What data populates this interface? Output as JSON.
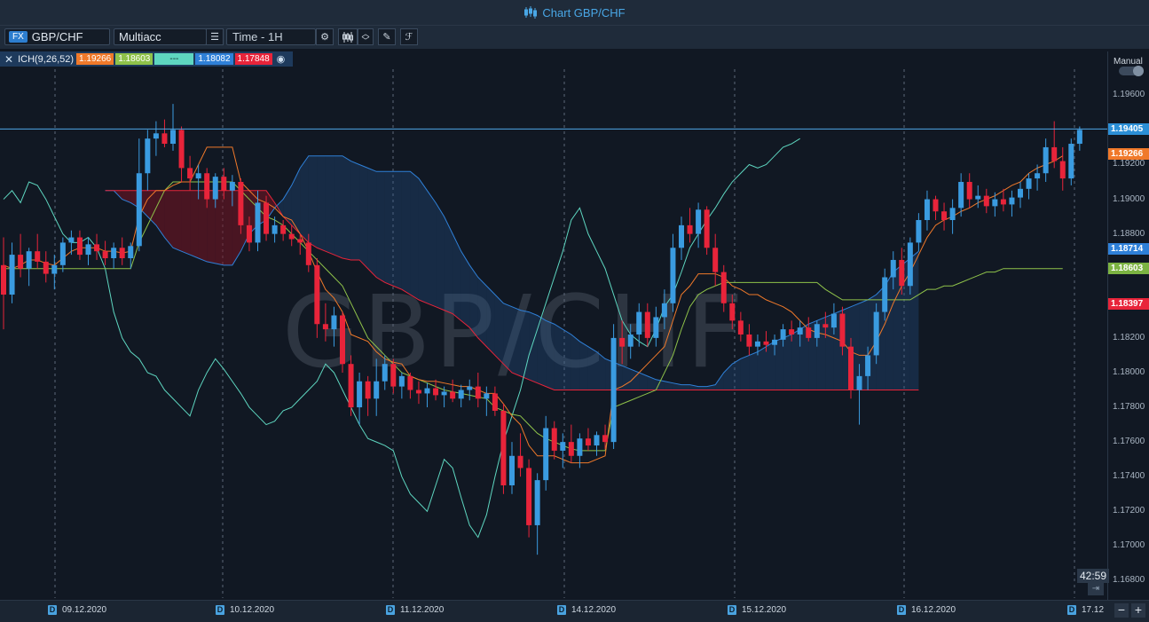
{
  "title": "Chart GBP/CHF",
  "toolbar": {
    "asset_type": "FX",
    "symbol": "GBP/CHF",
    "account": "Multiacc",
    "timeframe": "Time - 1H"
  },
  "indicator": {
    "name": "ICH(9,26,52)",
    "values": [
      {
        "text": "1.19266",
        "color": "#f0792a"
      },
      {
        "text": "1.18603",
        "color": "#8fc24a"
      },
      {
        "text": "---",
        "color": "#5ed6c0"
      },
      {
        "text": "1.18082",
        "color": "#2f80d8"
      },
      {
        "text": "1.17848",
        "color": "#e8243a"
      }
    ]
  },
  "watermark": "GBP/CHF",
  "price_axis": {
    "mode": "Manual",
    "labels": [
      "1.19600",
      "1.19400",
      "1.19200",
      "1.19000",
      "1.18800",
      "1.18600",
      "1.18400",
      "1.18200",
      "1.18000",
      "1.17800",
      "1.17600",
      "1.17400",
      "1.17200",
      "1.17000",
      "1.16800"
    ],
    "tags": [
      {
        "text": "1.19405",
        "color": "#2c8fd6",
        "price": 1.19405
      },
      {
        "text": "1.19266",
        "color": "#f0792a",
        "price": 1.19266
      },
      {
        "text": "1.18714",
        "color": "#2f80d8",
        "price": 1.18714
      },
      {
        "text": "1.18603",
        "color": "#7cb342",
        "price": 1.18603
      },
      {
        "text": "1.18397",
        "color": "#e8243a",
        "price": 1.18397
      }
    ]
  },
  "time_axis": {
    "badge": "D",
    "dates": [
      "09.12.2020",
      "10.12.2020",
      "11.12.2020",
      "14.12.2020",
      "15.12.2020",
      "16.12.2020",
      "17.12"
    ]
  },
  "timer": "42:59",
  "chart_data": {
    "type": "candlestick",
    "ylim": [
      1.167,
      1.1975
    ],
    "current_price": 1.19405,
    "candles": [
      [
        1.1862,
        1.1878,
        1.1825,
        1.1845
      ],
      [
        1.1845,
        1.1875,
        1.184,
        1.1868
      ],
      [
        1.1868,
        1.188,
        1.1855,
        1.186
      ],
      [
        1.186,
        1.1872,
        1.185,
        1.187
      ],
      [
        1.187,
        1.188,
        1.186,
        1.1864
      ],
      [
        1.1864,
        1.187,
        1.1852,
        1.1857
      ],
      [
        1.1857,
        1.1868,
        1.1848,
        1.1862
      ],
      [
        1.1862,
        1.1878,
        1.1858,
        1.1875
      ],
      [
        1.1875,
        1.1882,
        1.1868,
        1.1878
      ],
      [
        1.1878,
        1.1882,
        1.1865,
        1.1868
      ],
      [
        1.1868,
        1.1878,
        1.1862,
        1.1874
      ],
      [
        1.1874,
        1.188,
        1.1865,
        1.187
      ],
      [
        1.187,
        1.1876,
        1.1862,
        1.1866
      ],
      [
        1.1866,
        1.1875,
        1.186,
        1.1872
      ],
      [
        1.1872,
        1.1878,
        1.1862,
        1.1866
      ],
      [
        1.1866,
        1.1875,
        1.186,
        1.1873
      ],
      [
        1.1873,
        1.1935,
        1.187,
        1.1915
      ],
      [
        1.1915,
        1.194,
        1.1905,
        1.1935
      ],
      [
        1.1935,
        1.1945,
        1.1925,
        1.1938
      ],
      [
        1.1938,
        1.1946,
        1.193,
        1.1932
      ],
      [
        1.1932,
        1.1955,
        1.1928,
        1.194
      ],
      [
        1.194,
        1.1942,
        1.191,
        1.1918
      ],
      [
        1.1918,
        1.1925,
        1.1905,
        1.1912
      ],
      [
        1.1912,
        1.192,
        1.19,
        1.1915
      ],
      [
        1.1915,
        1.1918,
        1.1895,
        1.19
      ],
      [
        1.19,
        1.1915,
        1.1895,
        1.1913
      ],
      [
        1.1913,
        1.1918,
        1.19,
        1.1905
      ],
      [
        1.1905,
        1.1914,
        1.1896,
        1.191
      ],
      [
        1.191,
        1.1912,
        1.188,
        1.1885
      ],
      [
        1.1885,
        1.189,
        1.187,
        1.1875
      ],
      [
        1.1875,
        1.1905,
        1.187,
        1.1898
      ],
      [
        1.1898,
        1.1902,
        1.1876,
        1.188
      ],
      [
        1.188,
        1.189,
        1.1875,
        1.1885
      ],
      [
        1.1885,
        1.1888,
        1.1876,
        1.188
      ],
      [
        1.188,
        1.1885,
        1.1873,
        1.1877
      ],
      [
        1.1877,
        1.188,
        1.1868,
        1.1875
      ],
      [
        1.1875,
        1.188,
        1.1858,
        1.1862
      ],
      [
        1.1862,
        1.1866,
        1.182,
        1.1828
      ],
      [
        1.1828,
        1.184,
        1.1818,
        1.1825
      ],
      [
        1.1825,
        1.1838,
        1.1815,
        1.1833
      ],
      [
        1.1833,
        1.1835,
        1.18,
        1.1805
      ],
      [
        1.1805,
        1.181,
        1.1775,
        1.178
      ],
      [
        1.178,
        1.18,
        1.177,
        1.1795
      ],
      [
        1.1795,
        1.1798,
        1.1775,
        1.1785
      ],
      [
        1.1785,
        1.1808,
        1.1775,
        1.1795
      ],
      [
        1.1795,
        1.181,
        1.179,
        1.1805
      ],
      [
        1.1805,
        1.1808,
        1.1788,
        1.1792
      ],
      [
        1.1792,
        1.18,
        1.1785,
        1.1798
      ],
      [
        1.1798,
        1.18,
        1.1785,
        1.179
      ],
      [
        1.179,
        1.1795,
        1.1782,
        1.1788
      ],
      [
        1.1788,
        1.1794,
        1.178,
        1.1791
      ],
      [
        1.1791,
        1.1796,
        1.1784,
        1.1787
      ],
      [
        1.1787,
        1.1792,
        1.178,
        1.1789
      ],
      [
        1.1789,
        1.1796,
        1.1783,
        1.1785
      ],
      [
        1.1785,
        1.1793,
        1.178,
        1.179
      ],
      [
        1.179,
        1.1796,
        1.1784,
        1.1792
      ],
      [
        1.1792,
        1.18,
        1.178,
        1.1785
      ],
      [
        1.1785,
        1.1792,
        1.1775,
        1.1788
      ],
      [
        1.1788,
        1.1792,
        1.1775,
        1.1778
      ],
      [
        1.1778,
        1.1782,
        1.173,
        1.1735
      ],
      [
        1.1735,
        1.176,
        1.173,
        1.1752
      ],
      [
        1.1752,
        1.1765,
        1.174,
        1.1745
      ],
      [
        1.1745,
        1.175,
        1.1705,
        1.1712
      ],
      [
        1.1712,
        1.1742,
        1.1695,
        1.1738
      ],
      [
        1.1738,
        1.1775,
        1.1732,
        1.1768
      ],
      [
        1.1768,
        1.1772,
        1.175,
        1.1755
      ],
      [
        1.1755,
        1.1765,
        1.1745,
        1.176
      ],
      [
        1.176,
        1.177,
        1.1748,
        1.1752
      ],
      [
        1.1752,
        1.1765,
        1.1745,
        1.1762
      ],
      [
        1.1762,
        1.1768,
        1.1755,
        1.1758
      ],
      [
        1.1758,
        1.1766,
        1.1752,
        1.1764
      ],
      [
        1.1764,
        1.177,
        1.1756,
        1.176
      ],
      [
        1.176,
        1.1828,
        1.1756,
        1.182
      ],
      [
        1.182,
        1.183,
        1.1805,
        1.1815
      ],
      [
        1.1815,
        1.1828,
        1.1808,
        1.1822
      ],
      [
        1.1822,
        1.184,
        1.1815,
        1.1835
      ],
      [
        1.1835,
        1.184,
        1.1815,
        1.182
      ],
      [
        1.182,
        1.1838,
        1.1815,
        1.1832
      ],
      [
        1.1832,
        1.1848,
        1.1825,
        1.184
      ],
      [
        1.184,
        1.188,
        1.1835,
        1.1872
      ],
      [
        1.1872,
        1.189,
        1.1865,
        1.1885
      ],
      [
        1.1885,
        1.1895,
        1.1875,
        1.188
      ],
      [
        1.188,
        1.1898,
        1.1872,
        1.1894
      ],
      [
        1.1894,
        1.1896,
        1.1868,
        1.1872
      ],
      [
        1.1872,
        1.188,
        1.185,
        1.1858
      ],
      [
        1.1858,
        1.1862,
        1.1835,
        1.184
      ],
      [
        1.184,
        1.1845,
        1.1825,
        1.183
      ],
      [
        1.183,
        1.1835,
        1.1818,
        1.1822
      ],
      [
        1.1822,
        1.1828,
        1.181,
        1.1815
      ],
      [
        1.1815,
        1.1822,
        1.181,
        1.1818
      ],
      [
        1.1818,
        1.1824,
        1.1812,
        1.1816
      ],
      [
        1.1816,
        1.1822,
        1.181,
        1.1819
      ],
      [
        1.1819,
        1.1828,
        1.1815,
        1.1825
      ],
      [
        1.1825,
        1.183,
        1.1818,
        1.1822
      ],
      [
        1.1822,
        1.183,
        1.1815,
        1.1826
      ],
      [
        1.1826,
        1.1832,
        1.1818,
        1.182
      ],
      [
        1.182,
        1.183,
        1.1815,
        1.1828
      ],
      [
        1.1828,
        1.1835,
        1.182,
        1.1826
      ],
      [
        1.1826,
        1.184,
        1.1822,
        1.1834
      ],
      [
        1.1834,
        1.1838,
        1.181,
        1.1815
      ],
      [
        1.1815,
        1.182,
        1.1785,
        1.179
      ],
      [
        1.179,
        1.1805,
        1.177,
        1.1798
      ],
      [
        1.1798,
        1.1815,
        1.179,
        1.181
      ],
      [
        1.181,
        1.184,
        1.1805,
        1.1835
      ],
      [
        1.1835,
        1.186,
        1.183,
        1.1855
      ],
      [
        1.1855,
        1.187,
        1.1848,
        1.1865
      ],
      [
        1.1865,
        1.1872,
        1.1845,
        1.185
      ],
      [
        1.185,
        1.1878,
        1.1845,
        1.1875
      ],
      [
        1.1875,
        1.1892,
        1.187,
        1.1888
      ],
      [
        1.1888,
        1.1905,
        1.1882,
        1.19
      ],
      [
        1.19,
        1.1902,
        1.1888,
        1.1893
      ],
      [
        1.1893,
        1.1898,
        1.1882,
        1.1888
      ],
      [
        1.1888,
        1.19,
        1.188,
        1.1895
      ],
      [
        1.1895,
        1.1915,
        1.189,
        1.191
      ],
      [
        1.191,
        1.1915,
        1.1895,
        1.19
      ],
      [
        1.19,
        1.1908,
        1.1895,
        1.1902
      ],
      [
        1.1902,
        1.1906,
        1.1892,
        1.1896
      ],
      [
        1.1896,
        1.1904,
        1.189,
        1.19
      ],
      [
        1.19,
        1.1906,
        1.1893,
        1.1897
      ],
      [
        1.1897,
        1.1905,
        1.189,
        1.1901
      ],
      [
        1.1901,
        1.191,
        1.1895,
        1.1906
      ],
      [
        1.1906,
        1.1915,
        1.19,
        1.1912
      ],
      [
        1.1912,
        1.192,
        1.1905,
        1.1915
      ],
      [
        1.1915,
        1.1935,
        1.191,
        1.193
      ],
      [
        1.193,
        1.1945,
        1.1918,
        1.1922
      ],
      [
        1.1922,
        1.193,
        1.1905,
        1.1912
      ],
      [
        1.1912,
        1.1935,
        1.1908,
        1.1932
      ],
      [
        1.1932,
        1.1942,
        1.1928,
        1.194
      ]
    ],
    "tenkan": [
      1.1862,
      1.186,
      1.1862,
      1.1865,
      1.1865,
      1.1863,
      1.1862,
      1.1866,
      1.187,
      1.1872,
      1.1872,
      1.1872,
      1.187,
      1.187,
      1.1869,
      1.187,
      1.189,
      1.19,
      1.1905,
      1.1905,
      1.1908,
      1.191,
      1.191,
      1.192,
      1.193,
      1.193,
      1.193,
      1.193,
      1.191,
      1.1905,
      1.19,
      1.1898,
      1.1895,
      1.189,
      1.1888,
      1.188,
      1.187,
      1.1858,
      1.1848,
      1.1843,
      1.1835,
      1.1822,
      1.182,
      1.1818,
      1.1812,
      1.1808,
      1.1806,
      1.1805,
      1.1798,
      1.1796,
      1.1795,
      1.1795,
      1.1794,
      1.1793,
      1.1792,
      1.1792,
      1.179,
      1.1788,
      1.1788,
      1.1782,
      1.1775,
      1.177,
      1.1758,
      1.1752,
      1.1752,
      1.1752,
      1.175,
      1.1748,
      1.1748,
      1.1748,
      1.175,
      1.1752,
      1.179,
      1.1792,
      1.1795,
      1.18,
      1.1805,
      1.181,
      1.1815,
      1.183,
      1.1845,
      1.185,
      1.1857,
      1.1857,
      1.1857,
      1.1855,
      1.185,
      1.1848,
      1.1845,
      1.1845,
      1.1842,
      1.184,
      1.1838,
      1.1835,
      1.183,
      1.1825,
      1.1823,
      1.1822,
      1.182,
      1.1818,
      1.1812,
      1.181,
      1.181,
      1.1818,
      1.1828,
      1.184,
      1.185,
      1.1858,
      1.1868,
      1.1878,
      1.1885,
      1.1888,
      1.189,
      1.1893,
      1.1895,
      1.1898,
      1.19,
      1.1902,
      1.1905,
      1.1908,
      1.191,
      1.1915,
      1.1918,
      1.192,
      1.1922,
      1.1925
    ],
    "kijun": [
      1.186,
      1.186,
      1.186,
      1.186,
      1.186,
      1.186,
      1.186,
      1.186,
      1.186,
      1.186,
      1.186,
      1.186,
      1.186,
      1.186,
      1.186,
      1.186,
      1.1875,
      1.1885,
      1.1895,
      1.1905,
      1.191,
      1.191,
      1.191,
      1.191,
      1.191,
      1.191,
      1.191,
      1.191,
      1.1905,
      1.19,
      1.1895,
      1.189,
      1.1888,
      1.1885,
      1.188,
      1.1875,
      1.187,
      1.1865,
      1.186,
      1.1855,
      1.185,
      1.184,
      1.183,
      1.182,
      1.1815,
      1.181,
      1.1805,
      1.18,
      1.1798,
      1.1796,
      1.1794,
      1.1792,
      1.179,
      1.1789,
      1.1788,
      1.1787,
      1.1786,
      1.1785,
      1.178,
      1.1778,
      1.1776,
      1.1775,
      1.177,
      1.1765,
      1.1762,
      1.176,
      1.1758,
      1.1756,
      1.1755,
      1.1755,
      1.1755,
      1.1755,
      1.178,
      1.1782,
      1.1784,
      1.1786,
      1.1788,
      1.179,
      1.18,
      1.181,
      1.1825,
      1.1838,
      1.1845,
      1.1848,
      1.185,
      1.1852,
      1.1852,
      1.1852,
      1.1852,
      1.1852,
      1.1852,
      1.1852,
      1.1852,
      1.1852,
      1.1852,
      1.1852,
      1.1852,
      1.1848,
      1.1845,
      1.1842,
      1.1842,
      1.1842,
      1.1842,
      1.1842,
      1.1842,
      1.1842,
      1.1842,
      1.1842,
      1.1845,
      1.1848,
      1.1848,
      1.185,
      1.185,
      1.1852,
      1.1854,
      1.1856,
      1.1858,
      1.1858,
      1.186,
      1.186,
      1.186,
      1.186,
      1.186,
      1.186,
      1.186,
      1.186
    ],
    "chikou": [
      1.19,
      1.1905,
      1.1898,
      1.191,
      1.1908,
      1.19,
      1.189,
      1.188,
      1.1875,
      1.1875,
      1.1878,
      1.1872,
      1.186,
      1.1835,
      1.182,
      1.1812,
      1.1808,
      1.18,
      1.1798,
      1.179,
      1.1785,
      1.178,
      1.1775,
      1.179,
      1.18,
      1.1808,
      1.1802,
      1.1795,
      1.1788,
      1.178,
      1.1775,
      1.177,
      1.1772,
      1.1778,
      1.178,
      1.1785,
      1.179,
      1.1795,
      1.1805,
      1.18,
      1.179,
      1.178,
      1.177,
      1.1762,
      1.176,
      1.1758,
      1.1755,
      1.174,
      1.173,
      1.1725,
      1.172,
      1.1735,
      1.175,
      1.1745,
      1.1728,
      1.1712,
      1.1705,
      1.1718,
      1.174,
      1.176,
      1.1775,
      1.179,
      1.181,
      1.1825,
      1.184,
      1.1855,
      1.187,
      1.1888,
      1.1895,
      1.188,
      1.187,
      1.186,
      1.1845,
      1.183,
      1.1822,
      1.1818,
      1.1815,
      1.1825,
      1.1838,
      1.1845,
      1.1858,
      1.1872,
      1.188,
      1.1888,
      1.1895,
      1.1903,
      1.191,
      1.1915,
      1.192,
      1.1918,
      1.192,
      1.1925,
      1.193,
      1.1932,
      1.1935
    ],
    "span_a": [
      1.1905,
      1.1905,
      1.19,
      1.1898,
      1.1895,
      1.189,
      1.1885,
      1.1878,
      1.1872,
      1.187,
      1.1868,
      1.1866,
      1.1864,
      1.1863,
      1.1862,
      1.1862,
      1.187,
      1.188,
      1.1885,
      1.1888,
      1.1895,
      1.19,
      1.1908,
      1.1918,
      1.1925,
      1.1925,
      1.1925,
      1.1925,
      1.1925,
      1.1922,
      1.192,
      1.1918,
      1.1916,
      1.1916,
      1.1916,
      1.1916,
      1.1916,
      1.1912,
      1.1905,
      1.1898,
      1.189,
      1.188,
      1.187,
      1.1862,
      1.1855,
      1.185,
      1.1845,
      1.184,
      1.1838,
      1.1836,
      1.1835,
      1.1833,
      1.183,
      1.1828,
      1.1825,
      1.1822,
      1.1818,
      1.1815,
      1.1812,
      1.1808,
      1.1806,
      1.1804,
      1.1802,
      1.18,
      1.1798,
      1.1796,
      1.1795,
      1.1794,
      1.1793,
      1.1793,
      1.1792,
      1.1792,
      1.1793,
      1.18,
      1.1805,
      1.1808,
      1.181,
      1.1812,
      1.1815,
      1.1818,
      1.182,
      1.1822,
      1.1825,
      1.1828,
      1.183,
      1.1832,
      1.1834,
      1.1836,
      1.1838,
      1.184,
      1.1842,
      1.1845,
      1.185,
      1.1858,
      1.1862,
      1.1866,
      1.187
    ],
    "span_b": [
      1.1905,
      1.1905,
      1.1905,
      1.1905,
      1.1905,
      1.1905,
      1.1905,
      1.1905,
      1.1905,
      1.1905,
      1.1905,
      1.1905,
      1.1905,
      1.1905,
      1.1905,
      1.1905,
      1.1905,
      1.1905,
      1.1905,
      1.1905,
      1.1898,
      1.189,
      1.1885,
      1.188,
      1.1875,
      1.1872,
      1.187,
      1.1868,
      1.1866,
      1.1865,
      1.1865,
      1.186,
      1.1855,
      1.1852,
      1.185,
      1.1848,
      1.1845,
      1.1842,
      1.184,
      1.1838,
      1.1836,
      1.1834,
      1.183,
      1.1826,
      1.182,
      1.1815,
      1.181,
      1.1805,
      1.18,
      1.1798,
      1.1796,
      1.1794,
      1.1792,
      1.179,
      1.179,
      1.179,
      1.179,
      1.179,
      1.179,
      1.179,
      1.179,
      1.179,
      1.179,
      1.179,
      1.179,
      1.179,
      1.179,
      1.179,
      1.179,
      1.179,
      1.179,
      1.179,
      1.179,
      1.179,
      1.179,
      1.179,
      1.179,
      1.179,
      1.179,
      1.179,
      1.179,
      1.179,
      1.179,
      1.179,
      1.179,
      1.179,
      1.179,
      1.179,
      1.179,
      1.179,
      1.179,
      1.179,
      1.179,
      1.179,
      1.179,
      1.179,
      1.179
    ]
  }
}
